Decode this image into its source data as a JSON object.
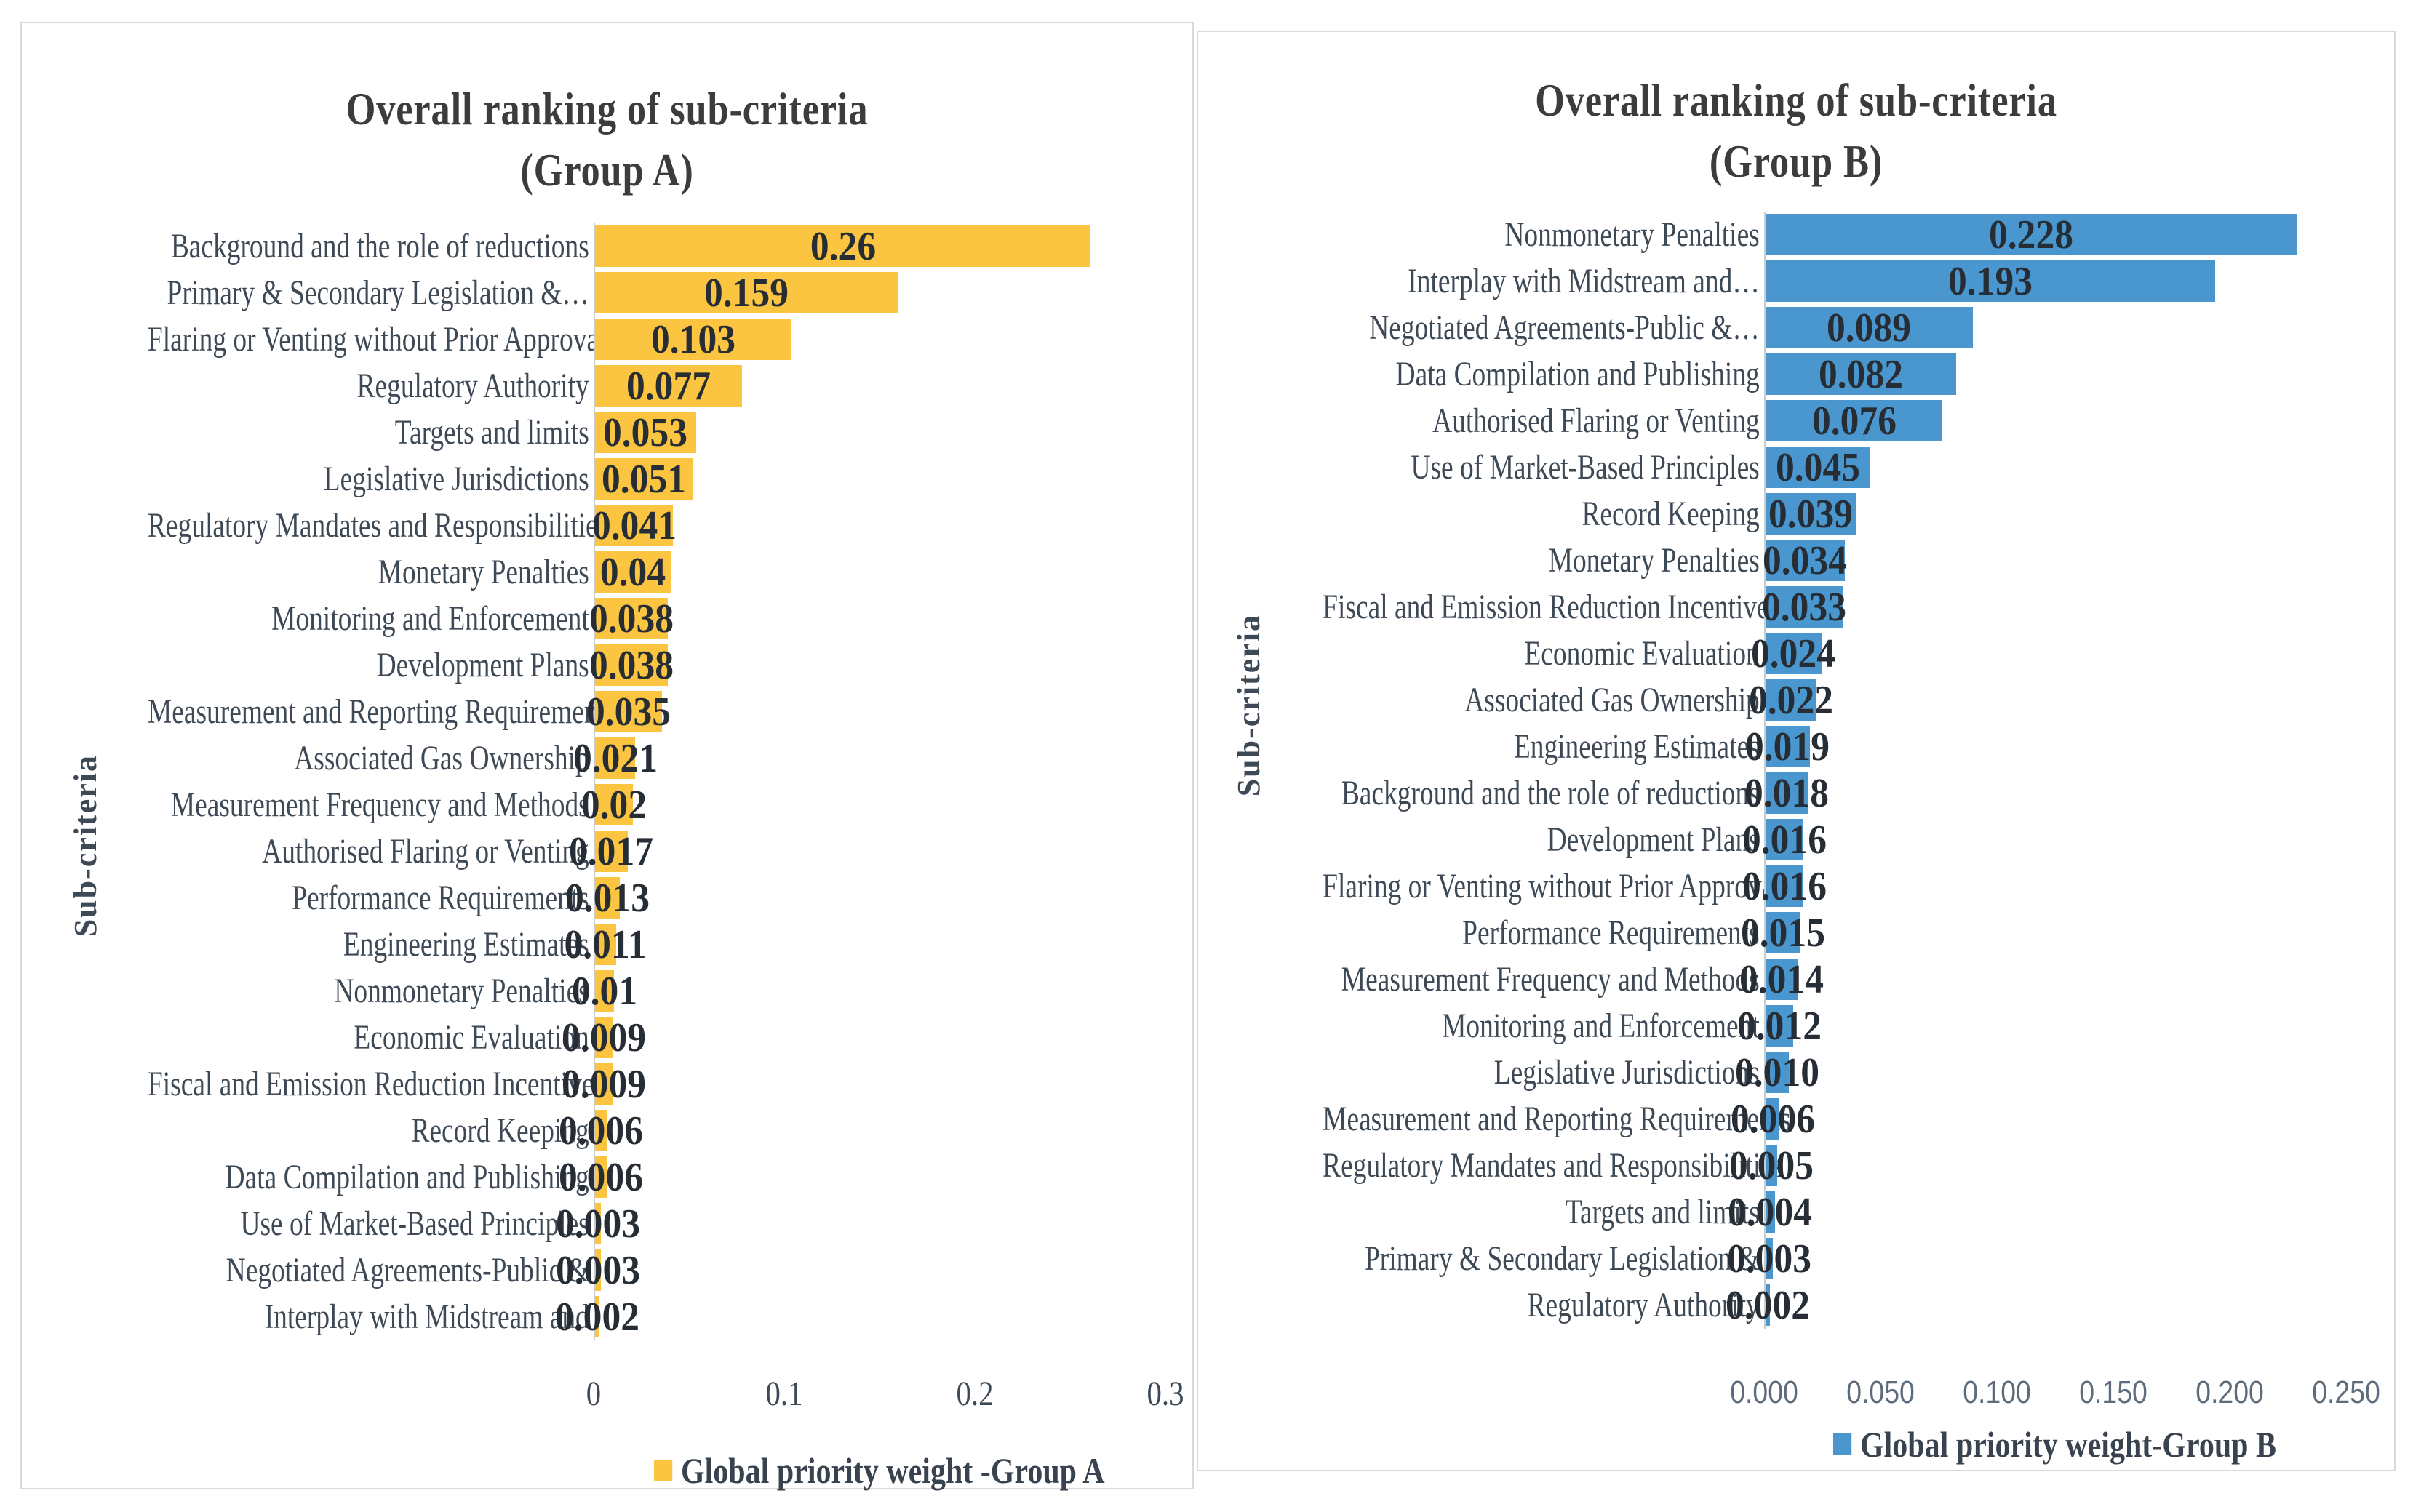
{
  "chart_data": [
    {
      "type": "bar",
      "orientation": "horizontal",
      "title": "Overall ranking of sub-criteria",
      "subtitle": "(Group A)",
      "ylabel": "Sub-criteria",
      "legend": "Global priority weight -Group A",
      "bar_color": "#FBC541",
      "xlim": [
        0,
        0.3
      ],
      "xticks": [
        "0",
        "0.1",
        "0.2",
        "0.3"
      ],
      "xtick_values": [
        0,
        0.1,
        0.2,
        0.3
      ],
      "grid": false,
      "legend_position": "bottom",
      "categories": [
        "Background and the role of reductions",
        "Primary & Secondary Legislation &…",
        "Flaring or Venting without Prior Approval",
        "Regulatory Authority",
        "Targets and limits",
        "Legislative Jurisdictions",
        "Regulatory Mandates and Responsibilities",
        "Monetary Penalties",
        "Monitoring and Enforcement",
        "Development Plans",
        "Measurement and Reporting Requirements",
        "Associated Gas Ownership",
        "Measurement Frequency and Methods",
        "Authorised Flaring or Venting",
        "Performance Requirements",
        "Engineering Estimates",
        "Nonmonetary Penalties",
        "Economic Evaluation",
        "Fiscal and Emission Reduction Incentives",
        "Record Keeping",
        "Data Compilation and Publishing",
        "Use of Market-Based Principles",
        "Negotiated Agreements-Public &",
        "Interplay with Midstream and"
      ],
      "values": [
        0.26,
        0.159,
        0.103,
        0.077,
        0.053,
        0.051,
        0.041,
        0.04,
        0.038,
        0.038,
        0.035,
        0.021,
        0.02,
        0.017,
        0.013,
        0.011,
        0.01,
        0.009,
        0.009,
        0.006,
        0.006,
        0.003,
        0.003,
        0.002
      ],
      "value_labels": [
        "0.26",
        "0.159",
        "0.103",
        "0.077",
        "0.053",
        "0.051",
        "0.041",
        "0.04",
        "0.038",
        "0.038",
        "0.035",
        "0.021",
        "0.02",
        "0.017",
        "0.013",
        "0.011",
        "0.01",
        "0.009",
        "0.009",
        "0.006",
        "0.006",
        "0.003",
        "0.003",
        "0.002"
      ]
    },
    {
      "type": "bar",
      "orientation": "horizontal",
      "title": "Overall ranking of sub-criteria",
      "subtitle": "(Group B)",
      "ylabel": "Sub-criteria",
      "legend": "Global priority weight-Group B",
      "bar_color": "#4A97CF",
      "xlim": [
        0,
        0.25
      ],
      "xticks": [
        "0.000",
        "0.050",
        "0.100",
        "0.150",
        "0.200",
        "0.250"
      ],
      "xtick_values": [
        0,
        0.05,
        0.1,
        0.15,
        0.2,
        0.25
      ],
      "grid": false,
      "legend_position": "bottom",
      "categories": [
        "Nonmonetary Penalties",
        "Interplay with Midstream and…",
        "Negotiated Agreements-Public &…",
        "Data Compilation and Publishing",
        "Authorised Flaring or Venting",
        "Use of Market-Based Principles",
        "Record Keeping",
        "Monetary Penalties",
        "Fiscal and Emission Reduction Incentives",
        "Economic Evaluation",
        "Associated Gas Ownership",
        "Engineering Estimates",
        "Background and the role of reductions",
        "Development Plans",
        "Flaring or Venting without Prior Approval",
        "Performance Requirements",
        "Measurement Frequency and Methods",
        "Monitoring and Enforcement",
        "Legislative Jurisdictions",
        "Measurement and Reporting Requirements",
        "Regulatory Mandates and Responsibilities",
        "Targets and limits",
        "Primary & Secondary Legislation &",
        "Regulatory Authority"
      ],
      "values": [
        0.228,
        0.193,
        0.089,
        0.082,
        0.076,
        0.045,
        0.039,
        0.034,
        0.033,
        0.024,
        0.022,
        0.019,
        0.018,
        0.016,
        0.016,
        0.015,
        0.014,
        0.012,
        0.01,
        0.006,
        0.005,
        0.004,
        0.003,
        0.002
      ],
      "value_labels": [
        "0.228",
        "0.193",
        "0.089",
        "0.082",
        "0.076",
        "0.045",
        "0.039",
        "0.034",
        "0.033",
        "0.024",
        "0.022",
        "0.019",
        "0.018",
        "0.016",
        "0.016",
        "0.015",
        "0.014",
        "0.012",
        "0.010",
        "0.006",
        "0.005",
        "0.004",
        "0.003",
        "0.002"
      ]
    }
  ]
}
